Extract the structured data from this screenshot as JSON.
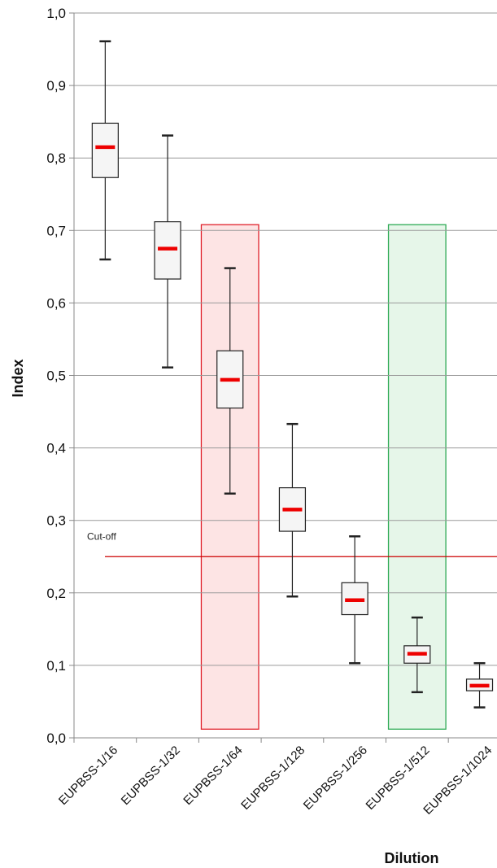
{
  "chart_data": {
    "type": "boxplot",
    "xlabel": "Dilution",
    "ylabel": "Index",
    "ylim": [
      0.0,
      1.0
    ],
    "ytick_values": [
      0.0,
      0.1,
      0.2,
      0.3,
      0.4,
      0.5,
      0.6,
      0.7,
      0.8,
      0.9,
      1.0
    ],
    "ytick_labels": [
      "0,0",
      "0,1",
      "0,2",
      "0,3",
      "0,4",
      "0,5",
      "0,6",
      "0,7",
      "0,8",
      "0,9",
      "1,0"
    ],
    "grid": true,
    "categories": [
      "EUPBSS-1/16",
      "EUPBSS-1/32",
      "EUPBSS-1/64",
      "EUPBSS-1/128",
      "EUPBSS-1/256",
      "EUPBSS-1/512",
      "EUPBSS-1/1024"
    ],
    "boxes": [
      {
        "min": 0.66,
        "q1": 0.773,
        "median": 0.815,
        "q3": 0.848,
        "max": 0.961
      },
      {
        "min": 0.511,
        "q1": 0.633,
        "median": 0.675,
        "q3": 0.712,
        "max": 0.831
      },
      {
        "min": 0.337,
        "q1": 0.455,
        "median": 0.494,
        "q3": 0.534,
        "max": 0.648
      },
      {
        "min": 0.195,
        "q1": 0.285,
        "median": 0.315,
        "q3": 0.345,
        "max": 0.433
      },
      {
        "min": 0.103,
        "q1": 0.17,
        "median": 0.19,
        "q3": 0.214,
        "max": 0.278
      },
      {
        "min": 0.063,
        "q1": 0.103,
        "median": 0.116,
        "q3": 0.127,
        "max": 0.166
      },
      {
        "min": 0.042,
        "q1": 0.065,
        "median": 0.072,
        "q3": 0.081,
        "max": 0.103
      }
    ],
    "reference_line": {
      "label": "Cut-off",
      "value": 0.25,
      "color": "#cc0000"
    },
    "highlights": [
      {
        "category": "EUPBSS-1/64",
        "from": 0.012,
        "to": 0.708,
        "fill": "#fde4e4",
        "stroke": "#e0202a"
      },
      {
        "category": "EUPBSS-1/512",
        "from": 0.012,
        "to": 0.708,
        "fill": "#e6f6e9",
        "stroke": "#2eaa55"
      }
    ],
    "colors": {
      "median": "#ee0000",
      "box_fill": "#f5f5f5",
      "box_stroke": "#222222",
      "grid": "#9a9a9a",
      "axis": "#888888"
    }
  }
}
